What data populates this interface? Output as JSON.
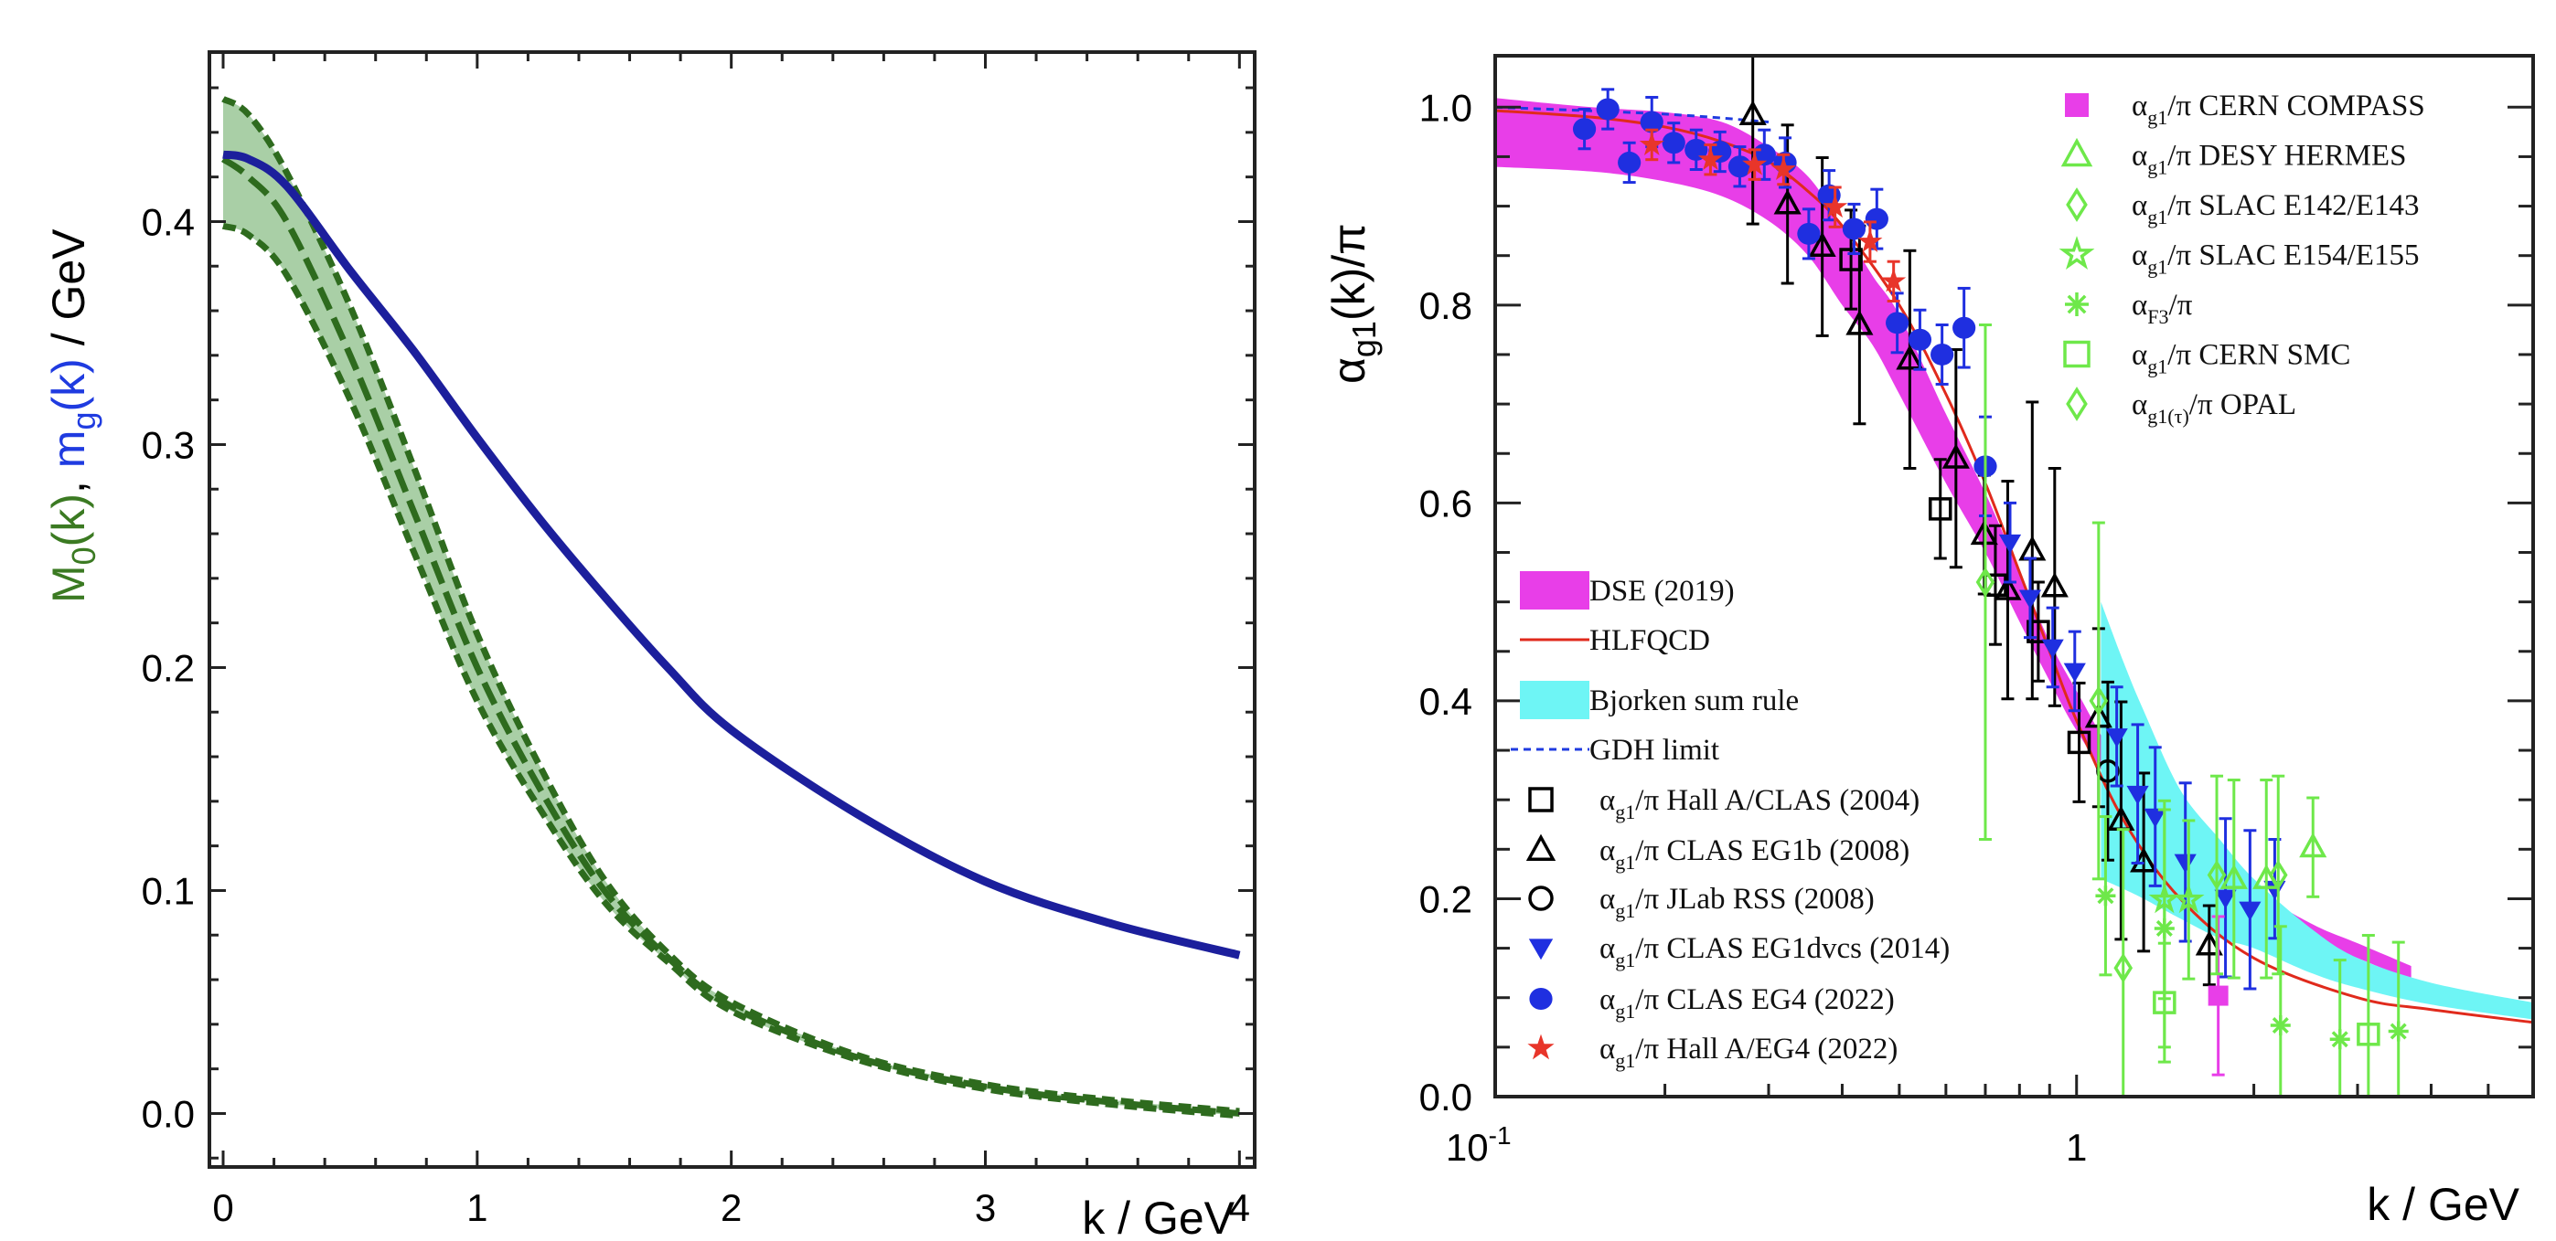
{
  "chart_data": [
    {
      "type": "line",
      "panel": "left",
      "xlabel": "k / GeV",
      "ylabel_parts": [
        {
          "text": "M",
          "color": "#3b7a22"
        },
        {
          "text": "0",
          "sub": true,
          "color": "#3b7a22"
        },
        {
          "text": "(k)",
          "color": "#3b7a22"
        },
        {
          "text": ", ",
          "color": "#000000"
        },
        {
          "text": "m",
          "color": "#1f3be0"
        },
        {
          "text": "g",
          "sub": true,
          "color": "#1f3be0"
        },
        {
          "text": "(k)",
          "color": "#1f3be0"
        },
        {
          "text": " / GeV",
          "color": "#000000"
        }
      ],
      "xlim": [
        -0.054,
        4.06
      ],
      "ylim": [
        -0.024,
        0.476
      ],
      "xticks": [
        "0",
        "1",
        "2",
        "3",
        "4"
      ],
      "yticks": [
        "0.0",
        "0.1",
        "0.2",
        "0.3",
        "0.4"
      ],
      "series": [
        {
          "name": "m_g(k)",
          "color": "#1c1f9c",
          "x": [
            0,
            0.1,
            0.25,
            0.5,
            0.75,
            1.0,
            1.25,
            1.5,
            1.75,
            2.0,
            2.5,
            3.0,
            3.5,
            4.0
          ],
          "y": [
            0.43,
            0.428,
            0.416,
            0.378,
            0.342,
            0.303,
            0.266,
            0.232,
            0.2,
            0.172,
            0.134,
            0.104,
            0.085,
            0.071
          ]
        },
        {
          "name": "M_0(k)",
          "color": "#2e6b1e",
          "band_color": "#a9cfa6",
          "x": [
            0,
            0.1,
            0.25,
            0.5,
            0.75,
            1.0,
            1.25,
            1.5,
            1.75,
            2.0,
            2.5,
            3.0,
            3.5,
            4.0
          ],
          "y": [
            0.428,
            0.42,
            0.4,
            0.34,
            0.27,
            0.2,
            0.145,
            0.1,
            0.07,
            0.048,
            0.025,
            0.012,
            0.005,
            0.0
          ],
          "upper": [
            0.455,
            0.448,
            0.422,
            0.362,
            0.29,
            0.215,
            0.155,
            0.105,
            0.072,
            0.05,
            0.026,
            0.013,
            0.006,
            0.001
          ],
          "lower": [
            0.398,
            0.394,
            0.376,
            0.32,
            0.252,
            0.185,
            0.136,
            0.095,
            0.068,
            0.046,
            0.024,
            0.011,
            0.004,
            -0.001
          ]
        }
      ]
    },
    {
      "type": "scatter",
      "panel": "right",
      "xscale": "log",
      "xlabel": "k / GeV",
      "ylabel": {
        "main": "α",
        "sub": "g1",
        "rest": "(k)/π"
      },
      "xlim": [
        0.103,
        5.96
      ],
      "ylim": [
        0.0,
        1.052
      ],
      "xticks": [
        {
          "base": "10",
          "exp": "-1",
          "value": 0.1
        },
        {
          "base": "1",
          "exp": "",
          "value": 1
        }
      ],
      "yticks": [
        "0.0",
        "0.2",
        "0.4",
        "0.6",
        "0.8",
        "1.0"
      ],
      "bands": [
        {
          "name": "DSE (2019)",
          "color": "#e83ee8",
          "k": [
            0.1,
            0.15,
            0.2,
            0.25,
            0.3,
            0.35,
            0.4,
            0.45,
            0.5,
            0.6,
            0.7,
            0.8,
            0.9,
            1.0,
            1.2,
            1.5,
            2.0,
            2.5,
            3.0,
            3.7
          ],
          "upper": [
            1.01,
            1.0,
            0.995,
            0.985,
            0.96,
            0.93,
            0.88,
            0.83,
            0.79,
            0.69,
            0.61,
            0.53,
            0.46,
            0.41,
            0.33,
            0.27,
            0.21,
            0.175,
            0.155,
            0.132
          ],
          "lower": [
            0.94,
            0.935,
            0.925,
            0.91,
            0.885,
            0.85,
            0.8,
            0.76,
            0.71,
            0.62,
            0.55,
            0.48,
            0.42,
            0.37,
            0.3,
            0.245,
            0.19,
            0.16,
            0.14,
            0.118
          ]
        },
        {
          "name": "Bjorken sum rule",
          "color": "#6ef5f5",
          "k": [
            1.1,
            1.2,
            1.3,
            1.5,
            1.75,
            2.0,
            2.5,
            3.0,
            4.0,
            5.96
          ],
          "upper": [
            0.5,
            0.44,
            0.39,
            0.31,
            0.26,
            0.22,
            0.17,
            0.14,
            0.115,
            0.095
          ],
          "lower": [
            0.22,
            0.21,
            0.2,
            0.18,
            0.16,
            0.15,
            0.125,
            0.11,
            0.093,
            0.078
          ]
        }
      ],
      "lines": [
        {
          "name": "HLFQCD",
          "color": "#e02a1c",
          "dash": "",
          "k": [
            0.1,
            0.15,
            0.2,
            0.25,
            0.3,
            0.35,
            0.4,
            0.5,
            0.6,
            0.7,
            0.8,
            0.9,
            1.0,
            1.2,
            1.5,
            2.0,
            3.0,
            4.0,
            5.96
          ],
          "y": [
            0.997,
            0.99,
            0.98,
            0.965,
            0.945,
            0.915,
            0.88,
            0.8,
            0.71,
            0.62,
            0.53,
            0.45,
            0.38,
            0.28,
            0.2,
            0.14,
            0.1,
            0.088,
            0.075
          ]
        },
        {
          "name": "GDH limit",
          "color": "#1f3be0",
          "dash": "8 6",
          "k": [
            0.103,
            0.2,
            0.3
          ],
          "y": [
            1.0,
            0.993,
            0.985
          ]
        }
      ],
      "series": [
        {
          "name": "Hall A/CLAS (2004)",
          "marker": "square-open",
          "color": "#000000",
          "points": [
            [
              0.414,
              0.846,
              0.05
            ],
            [
              0.587,
              0.594,
              0.05
            ],
            [
              0.728,
              0.517,
              0.06
            ],
            [
              0.861,
              0.47,
              0.05
            ],
            [
              1.01,
              0.358,
              0.06
            ]
          ]
        },
        {
          "name": "CLAS EG1b (2008)",
          "marker": "triangle-open",
          "color": "#000000",
          "points": [
            [
              0.282,
              0.992,
              0.11
            ],
            [
              0.323,
              0.902,
              0.08
            ],
            [
              0.37,
              0.859,
              0.09
            ],
            [
              0.428,
              0.78,
              0.1
            ],
            [
              0.521,
              0.745,
              0.11
            ],
            [
              0.624,
              0.645,
              0.11
            ],
            [
              0.697,
              0.568,
              0.06
            ],
            [
              0.764,
              0.512,
              0.11
            ],
            [
              0.841,
              0.552,
              0.15
            ],
            [
              0.918,
              0.515,
              0.12
            ],
            [
              1.09,
              0.383,
              0.09
            ],
            [
              1.19,
              0.279,
              0.12
            ],
            [
              1.3,
              0.237,
              0.09
            ],
            [
              1.68,
              0.153,
              0.04
            ]
          ]
        },
        {
          "name": "JLab RSS (2008)",
          "marker": "circle-open",
          "color": "#000000",
          "points": [
            [
              1.13,
              0.329,
              0.09
            ]
          ]
        },
        {
          "name": "CLAS EG1dvcs (2014)",
          "marker": "triangle-down",
          "color": "#1f2fe0",
          "points": [
            [
              0.771,
              0.56,
              0.04
            ],
            [
              0.834,
              0.504,
              0.04
            ],
            [
              0.911,
              0.454,
              0.04
            ],
            [
              0.993,
              0.43,
              0.04
            ],
            [
              1.17,
              0.364,
              0.05
            ],
            [
              1.27,
              0.306,
              0.07
            ],
            [
              1.36,
              0.283,
              0.07
            ],
            [
              1.53,
              0.237,
              0.08
            ],
            [
              1.79,
              0.201,
              0.08
            ],
            [
              1.97,
              0.189,
              0.08
            ],
            [
              2.17,
              0.21,
              0.05
            ]
          ]
        },
        {
          "name": "CLAS EG4 (2022)",
          "marker": "circle",
          "color": "#1f2fe0",
          "points": [
            [
              0.146,
              0.978,
              0.02
            ],
            [
              0.16,
              0.998,
              0.02
            ],
            [
              0.174,
              0.944,
              0.02
            ],
            [
              0.19,
              0.985,
              0.025
            ],
            [
              0.207,
              0.964,
              0.02
            ],
            [
              0.226,
              0.957,
              0.02
            ],
            [
              0.248,
              0.955,
              0.02
            ],
            [
              0.268,
              0.94,
              0.02
            ],
            [
              0.295,
              0.952,
              0.025
            ],
            [
              0.32,
              0.944,
              0.025
            ],
            [
              0.351,
              0.872,
              0.025
            ],
            [
              0.38,
              0.911,
              0.025
            ],
            [
              0.419,
              0.877,
              0.025
            ],
            [
              0.458,
              0.887,
              0.03
            ],
            [
              0.496,
              0.782,
              0.03
            ],
            [
              0.542,
              0.765,
              0.03
            ],
            [
              0.591,
              0.75,
              0.03
            ],
            [
              0.644,
              0.777,
              0.04
            ],
            [
              0.7,
              0.637,
              0.05
            ]
          ]
        },
        {
          "name": "Hall A/EG4 (2022)",
          "marker": "star",
          "color": "#e8352a",
          "points": [
            [
              0.19,
              0.962,
              0.015
            ],
            [
              0.239,
              0.947,
              0.015
            ],
            [
              0.284,
              0.942,
              0.015
            ],
            [
              0.318,
              0.937,
              0.015
            ],
            [
              0.389,
              0.899,
              0.02
            ],
            [
              0.446,
              0.864,
              0.02
            ],
            [
              0.489,
              0.824,
              0.02
            ]
          ]
        },
        {
          "name": "CERN COMPASS",
          "marker": "square",
          "color": "#e83ee8",
          "points": [
            [
              1.74,
              0.102,
              0.08
            ]
          ]
        },
        {
          "name": "DESY HERMES",
          "marker": "triangle-open",
          "color": "#6ee84a",
          "points": [
            [
              1.85,
              0.22,
              0.1
            ],
            [
              2.1,
              0.22,
              0.1
            ],
            [
              2.52,
              0.252,
              0.05
            ]
          ]
        },
        {
          "name": "SLAC E142/E143",
          "marker": "diamond-open",
          "color": "#6ee84a",
          "points": [
            [
              0.7,
              0.52,
              0.26
            ],
            [
              1.73,
              0.224,
              0.1
            ],
            [
              2.2,
              0.224,
              0.1
            ]
          ]
        },
        {
          "name": "SLAC E154/E155",
          "marker": "star-open",
          "color": "#6ee84a",
          "points": [
            [
              1.41,
              0.199,
              0.1
            ],
            [
              1.55,
              0.199,
              0.08
            ]
          ]
        },
        {
          "name": "F3",
          "marker": "asterisk",
          "color": "#6ee84a",
          "points": [
            [
              1.12,
              0.203,
              0.08
            ],
            [
              1.41,
              0.17,
              0.12
            ],
            [
              2.22,
              0.072,
              0.1
            ],
            [
              2.8,
              0.058,
              0.08
            ],
            [
              3.52,
              0.066,
              0.09
            ]
          ]
        },
        {
          "name": "CERN SMC",
          "marker": "square-open",
          "color": "#6ee84a",
          "points": [
            [
              1.41,
              0.095,
              0.06
            ],
            [
              3.13,
              0.063,
              0.1
            ]
          ]
        },
        {
          "name": "OPAL",
          "marker": "diamond-open",
          "color": "#6ee84a",
          "points": [
            [
              1.09,
              0.4,
              0.18
            ],
            [
              1.2,
              0.13,
              0.14
            ]
          ]
        }
      ],
      "legend_top_right": [
        {
          "marker": "square",
          "color": "#e83ee8",
          "main": "α",
          "sub": "g1",
          "rest": "/π CERN COMPASS"
        },
        {
          "marker": "triangle-open",
          "color": "#6ee84a",
          "main": "α",
          "sub": "g1",
          "rest": "/π DESY HERMES"
        },
        {
          "marker": "diamond-open",
          "color": "#6ee84a",
          "main": "α",
          "sub": "g1",
          "rest": "/π SLAC E142/E143"
        },
        {
          "marker": "star-open",
          "color": "#6ee84a",
          "main": "α",
          "sub": "g1",
          "rest": "/π SLAC E154/E155"
        },
        {
          "marker": "asterisk",
          "color": "#6ee84a",
          "main": "α",
          "sub": "F3",
          "rest": "/π"
        },
        {
          "marker": "square-open",
          "color": "#6ee84a",
          "main": "α",
          "sub": "g1",
          "rest": "/π CERN SMC"
        },
        {
          "marker": "diamond-open",
          "color": "#6ee84a",
          "main": "α",
          "sub": "g1(τ)",
          "rest": "/π OPAL"
        }
      ],
      "legend_bottom_left": [
        {
          "marker": "band",
          "color": "#e83ee8",
          "main": "DSE (2019)",
          "sub": "",
          "rest": ""
        },
        {
          "marker": "line",
          "color": "#e02a1c",
          "main": "HLFQCD",
          "sub": "",
          "rest": ""
        },
        {
          "marker": "band",
          "color": "#6ef5f5",
          "main": "Bjorken sum rule",
          "sub": "",
          "rest": ""
        },
        {
          "marker": "dash",
          "color": "#1f3be0",
          "main": " GDH limit",
          "sub": "",
          "rest": ""
        },
        {
          "marker": "square-open",
          "color": "#000000",
          "main": "α",
          "sub": "g1",
          "rest": "/π Hall A/CLAS (2004)"
        },
        {
          "marker": "triangle-open",
          "color": "#000000",
          "main": "α",
          "sub": "g1",
          "rest": "/π CLAS EG1b (2008)"
        },
        {
          "marker": "circle-open",
          "color": "#000000",
          "main": "α",
          "sub": "g1",
          "rest": "/π JLab RSS (2008)"
        },
        {
          "marker": "triangle-down",
          "color": "#1f2fe0",
          "main": "α",
          "sub": "g1",
          "rest": "/π CLAS EG1dvcs (2014)"
        },
        {
          "marker": "circle",
          "color": "#1f2fe0",
          "main": "α",
          "sub": "g1",
          "rest": "/π CLAS EG4 (2022)"
        },
        {
          "marker": "star",
          "color": "#e8352a",
          "main": "α",
          "sub": "g1",
          "rest": "/π Hall A/EG4 (2022)"
        }
      ]
    }
  ]
}
